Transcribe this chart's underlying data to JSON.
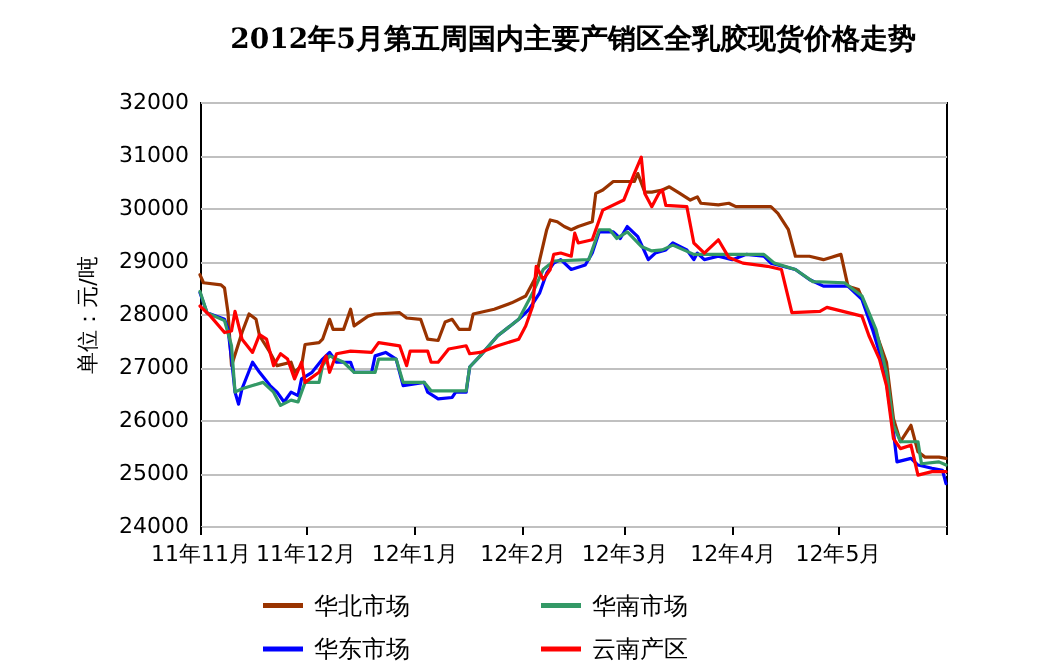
{
  "chart_data": {
    "type": "line",
    "title": "2012年5月第五周国内主要产销区全乳胶现货价格走势",
    "ylabel": "单位：元/吨",
    "xlim": [
      "2011-11-01",
      "2012-06-01"
    ],
    "xticks": [
      {
        "value": "2011-11-01",
        "label": "11年11月"
      },
      {
        "value": "2011-12-01",
        "label": "11年12月"
      },
      {
        "value": "2012-01-01",
        "label": "12年1月"
      },
      {
        "value": "2012-02-01",
        "label": "12年2月"
      },
      {
        "value": "2012-03-01",
        "label": "12年3月"
      },
      {
        "value": "2012-04-01",
        "label": "12年4月"
      },
      {
        "value": "2012-05-01",
        "label": "12年5月"
      },
      {
        "value": "2012-06-01",
        "label": null
      }
    ],
    "ylim": [
      24000,
      32000
    ],
    "yticks": [
      24000,
      25000,
      26000,
      27000,
      28000,
      29000,
      30000,
      31000,
      32000
    ],
    "grid": "y",
    "legend": "bottom",
    "marker": "none",
    "line_style": "solid",
    "series": [
      {
        "name": "华北市场",
        "color": "#993300",
        "x": [
          "2011-11-01",
          "2011-11-02",
          "2011-11-07",
          "2011-11-08",
          "2011-11-09",
          "2011-11-10",
          "2011-11-13",
          "2011-11-15",
          "2011-11-17",
          "2011-11-18",
          "2011-11-21",
          "2011-11-23",
          "2011-11-27",
          "2011-11-28",
          "2011-11-30",
          "2011-12-01",
          "2011-12-05",
          "2011-12-06",
          "2011-12-08",
          "2011-12-09",
          "2011-12-12",
          "2011-12-14",
          "2011-12-15",
          "2011-12-19",
          "2011-12-21",
          "2011-12-28",
          "2011-12-30",
          "2012-01-03",
          "2012-01-05",
          "2012-01-08",
          "2012-01-10",
          "2012-01-12",
          "2012-01-14",
          "2012-01-17",
          "2012-01-18",
          "2012-01-24",
          "2012-01-29",
          "2012-02-02",
          "2012-02-05",
          "2012-02-06",
          "2012-02-08",
          "2012-02-09",
          "2012-02-11",
          "2012-02-13",
          "2012-02-15",
          "2012-02-17",
          "2012-02-21",
          "2012-02-22",
          "2012-02-24",
          "2012-02-27",
          "2012-03-04",
          "2012-03-05",
          "2012-03-07",
          "2012-03-09",
          "2012-03-12",
          "2012-03-14",
          "2012-03-17",
          "2012-03-20",
          "2012-03-22",
          "2012-03-23",
          "2012-03-28",
          "2012-03-31",
          "2012-04-02",
          "2012-04-12",
          "2012-04-14",
          "2012-04-17",
          "2012-04-18",
          "2012-04-19",
          "2012-04-23",
          "2012-04-27",
          "2012-05-02",
          "2012-05-04",
          "2012-05-07",
          "2012-05-09",
          "2012-05-12",
          "2012-05-15",
          "2012-05-17",
          "2012-05-19",
          "2012-05-22",
          "2012-05-24",
          "2012-05-26",
          "2012-05-30",
          "2012-06-01"
        ],
        "values": [
          28740,
          28590,
          28550,
          28490,
          28025,
          27025,
          27650,
          28000,
          27900,
          27590,
          27275,
          27025,
          27090,
          26900,
          27025,
          27425,
          27460,
          27525,
          27900,
          27710,
          27710,
          28090,
          27775,
          27960,
          28000,
          28025,
          27925,
          27900,
          27525,
          27500,
          27850,
          27900,
          27710,
          27710,
          28000,
          28090,
          28210,
          28340,
          28710,
          29025,
          29590,
          29775,
          29740,
          29650,
          29590,
          29650,
          29740,
          30275,
          30340,
          30500,
          30500,
          30650,
          30300,
          30300,
          30340,
          30400,
          30275,
          30150,
          30210,
          30090,
          30060,
          30090,
          30025,
          30025,
          29900,
          29590,
          29340,
          29090,
          29090,
          29025,
          29125,
          28525,
          28460,
          28150,
          27650,
          27090,
          26025,
          25590,
          25900,
          25400,
          25300,
          25300,
          25275
        ]
      },
      {
        "name": "华东市场",
        "color": "#0000ff",
        "x": [
          "2011-11-01",
          "2011-11-03",
          "2011-11-08",
          "2011-11-09",
          "2011-11-10",
          "2011-11-11",
          "2011-11-12",
          "2011-11-13",
          "2011-11-16",
          "2011-11-18",
          "2011-11-21",
          "2011-11-23",
          "2011-11-25",
          "2011-11-27",
          "2011-11-29",
          "2011-11-30",
          "2011-12-03",
          "2011-12-06",
          "2011-12-08",
          "2011-12-10",
          "2011-12-14",
          "2011-12-15",
          "2011-12-20",
          "2011-12-21",
          "2011-12-24",
          "2011-12-27",
          "2011-12-29",
          "2012-01-04",
          "2012-01-05",
          "2012-01-08",
          "2012-01-12",
          "2012-01-13",
          "2012-01-16",
          "2012-01-17",
          "2012-01-20",
          "2012-01-25",
          "2012-01-31",
          "2012-02-03",
          "2012-02-06",
          "2012-02-08",
          "2012-02-10",
          "2012-02-12",
          "2012-02-15",
          "2012-02-19",
          "2012-02-21",
          "2012-02-23",
          "2012-02-27",
          "2012-02-29",
          "2012-03-02",
          "2012-03-05",
          "2012-03-08",
          "2012-03-10",
          "2012-03-13",
          "2012-03-15",
          "2012-03-19",
          "2012-03-21",
          "2012-03-22",
          "2012-03-24",
          "2012-03-28",
          "2012-04-01",
          "2012-04-05",
          "2012-04-10",
          "2012-04-12",
          "2012-04-19",
          "2012-04-23",
          "2012-04-27",
          "2012-05-04",
          "2012-05-08",
          "2012-05-11",
          "2012-05-13",
          "2012-05-15",
          "2012-05-17",
          "2012-05-18",
          "2012-05-22",
          "2012-05-24",
          "2012-05-28",
          "2012-05-31",
          "2012-06-01"
        ],
        "values": [
          28400,
          28025,
          27900,
          27710,
          27150,
          26525,
          26300,
          26590,
          27090,
          26900,
          26650,
          26525,
          26340,
          26525,
          26460,
          26775,
          26900,
          27150,
          27275,
          27090,
          27090,
          26900,
          26900,
          27210,
          27275,
          27150,
          26650,
          26710,
          26525,
          26400,
          26425,
          26525,
          26525,
          27000,
          27210,
          27590,
          27900,
          28090,
          28400,
          28775,
          28960,
          29025,
          28840,
          28925,
          29150,
          29550,
          29550,
          29425,
          29650,
          29460,
          29025,
          29150,
          29210,
          29340,
          29210,
          29025,
          29150,
          29025,
          29090,
          29025,
          29125,
          29090,
          28960,
          28840,
          28650,
          28525,
          28525,
          28275,
          27710,
          27275,
          26710,
          25775,
          25210,
          25275,
          25150,
          25090,
          25050,
          24800
        ]
      },
      {
        "name": "华南市场",
        "color": "#339966",
        "x": [
          "2011-11-01",
          "2011-11-03",
          "2011-11-08",
          "2011-11-10",
          "2011-11-11",
          "2011-11-13",
          "2011-11-16",
          "2011-11-19",
          "2011-11-22",
          "2011-11-24",
          "2011-11-27",
          "2011-11-29",
          "2011-12-01",
          "2011-12-05",
          "2011-12-06",
          "2011-12-08",
          "2011-12-12",
          "2011-12-15",
          "2011-12-21",
          "2011-12-22",
          "2011-12-27",
          "2011-12-29",
          "2012-01-04",
          "2012-01-06",
          "2012-01-16",
          "2012-01-17",
          "2012-01-20",
          "2012-01-25",
          "2012-01-31",
          "2012-02-01",
          "2012-02-04",
          "2012-02-07",
          "2012-02-10",
          "2012-02-20",
          "2012-02-23",
          "2012-02-26",
          "2012-02-28",
          "2012-03-02",
          "2012-03-06",
          "2012-03-09",
          "2012-03-12",
          "2012-03-15",
          "2012-03-21",
          "2012-03-28",
          "2012-04-10",
          "2012-04-13",
          "2012-04-19",
          "2012-04-24",
          "2012-05-03",
          "2012-05-08",
          "2012-05-12",
          "2012-05-15",
          "2012-05-17",
          "2012-05-19",
          "2012-05-24",
          "2012-05-25",
          "2012-05-30",
          "2012-06-01"
        ],
        "values": [
          28425,
          28025,
          27875,
          27400,
          26525,
          26590,
          26650,
          26710,
          26525,
          26275,
          26375,
          26340,
          26710,
          26710,
          27025,
          27210,
          27090,
          26900,
          26900,
          27150,
          27150,
          26710,
          26710,
          26550,
          26550,
          27000,
          27210,
          27590,
          27900,
          28025,
          28400,
          28840,
          29000,
          29025,
          29590,
          29590,
          29425,
          29550,
          29275,
          29190,
          29210,
          29300,
          29125,
          29125,
          29125,
          28960,
          28840,
          28610,
          28590,
          28340,
          27710,
          26900,
          25900,
          25590,
          25590,
          25175,
          25210,
          25150
        ]
      },
      {
        "name": "云南产区",
        "color": "#ff0000",
        "x": [
          "2011-11-01",
          "2011-11-04",
          "2011-11-08",
          "2011-11-10",
          "2011-11-11",
          "2011-11-13",
          "2011-11-16",
          "2011-11-18",
          "2011-11-20",
          "2011-11-22",
          "2011-11-24",
          "2011-11-26",
          "2011-11-28",
          "2011-11-30",
          "2011-12-01",
          "2011-12-05",
          "2011-12-07",
          "2011-12-08",
          "2011-12-10",
          "2011-12-14",
          "2011-12-20",
          "2011-12-22",
          "2011-12-28",
          "2011-12-30",
          "2011-12-31",
          "2012-01-05",
          "2012-01-06",
          "2012-01-08",
          "2012-01-11",
          "2012-01-16",
          "2012-01-17",
          "2012-01-20",
          "2012-01-25",
          "2012-01-31",
          "2012-02-02",
          "2012-02-04",
          "2012-02-05",
          "2012-02-07",
          "2012-02-09",
          "2012-02-10",
          "2012-02-12",
          "2012-02-15",
          "2012-02-16",
          "2012-02-17",
          "2012-02-21",
          "2012-02-22",
          "2012-02-24",
          "2012-03-01",
          "2012-03-04",
          "2012-03-06",
          "2012-03-07",
          "2012-03-09",
          "2012-03-11",
          "2012-03-12",
          "2012-03-13",
          "2012-03-19",
          "2012-03-21",
          "2012-03-24",
          "2012-03-28",
          "2012-03-31",
          "2012-04-04",
          "2012-04-11",
          "2012-04-15",
          "2012-04-18",
          "2012-04-26",
          "2012-04-28",
          "2012-05-04",
          "2012-05-08",
          "2012-05-10",
          "2012-05-13",
          "2012-05-15",
          "2012-05-17",
          "2012-05-19",
          "2012-05-22",
          "2012-05-24",
          "2012-05-28",
          "2012-06-01"
        ],
        "values": [
          28150,
          27960,
          27650,
          27680,
          28050,
          27525,
          27275,
          27610,
          27525,
          27025,
          27250,
          27150,
          26775,
          27090,
          26710,
          26900,
          27210,
          26900,
          27250,
          27300,
          27275,
          27460,
          27400,
          27025,
          27300,
          27300,
          27090,
          27090,
          27340,
          27400,
          27250,
          27275,
          27400,
          27525,
          27775,
          28150,
          28900,
          28650,
          28840,
          29125,
          29150,
          29090,
          29525,
          29340,
          29400,
          29590,
          29960,
          30150,
          30650,
          30960,
          30275,
          30025,
          30275,
          30340,
          30050,
          30025,
          29340,
          29150,
          29400,
          29065,
          28960,
          28900,
          28840,
          28025,
          28050,
          28125,
          28025,
          27960,
          27590,
          27150,
          26650,
          25650,
          25460,
          25525,
          24960,
          25025,
          25025
        ]
      }
    ]
  }
}
